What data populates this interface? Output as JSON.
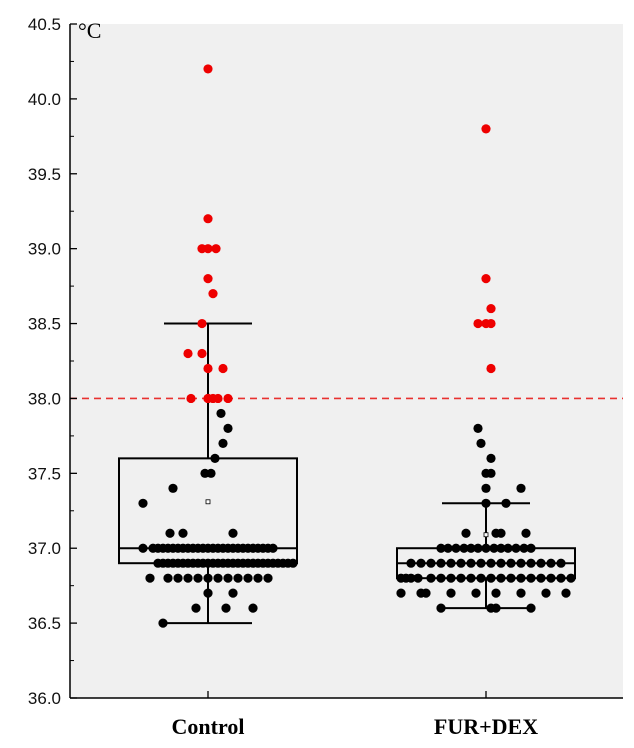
{
  "chart_data": {
    "type": "scatter",
    "subtype": "box-with-points",
    "title": "",
    "xlabel": "",
    "ylabel": "",
    "y_unit": "°C",
    "ylim": [
      36.0,
      40.5
    ],
    "yticks": [
      "36.0",
      "36.5",
      "37.0",
      "37.5",
      "38.0",
      "38.5",
      "39.0",
      "39.5",
      "40.0",
      "40.5"
    ],
    "categories": [
      "Control",
      "FUR+DEX"
    ],
    "threshold": {
      "value": 38.0,
      "color": "#e8312f",
      "style": "dashed"
    },
    "colors": {
      "below_threshold": "#000000",
      "above_threshold": "#ee0000",
      "background": "#f0f0f0"
    },
    "grid": false,
    "boxes": [
      {
        "category": "Control",
        "whisker_low": 36.5,
        "q1": 36.9,
        "median": 37.0,
        "q3": 37.6,
        "whisker_high": 38.5,
        "mean": 37.31
      },
      {
        "category": "FUR+DEX",
        "whisker_low": 36.6,
        "q1": 36.8,
        "median": 36.9,
        "q3": 37.0,
        "whisker_high": 37.3,
        "mean": 37.09
      }
    ],
    "series": [
      {
        "category": "Control",
        "points": [
          [
            -58,
            36.8
          ],
          [
            -50,
            36.9
          ],
          [
            -45,
            36.9
          ],
          [
            -40,
            36.9
          ],
          [
            -35,
            36.9
          ],
          [
            -30,
            36.9
          ],
          [
            -25,
            36.9
          ],
          [
            -20,
            36.9
          ],
          [
            -15,
            36.9
          ],
          [
            -10,
            36.9
          ],
          [
            -5,
            36.9
          ],
          [
            0,
            36.9
          ],
          [
            5,
            36.9
          ],
          [
            10,
            36.9
          ],
          [
            15,
            36.9
          ],
          [
            20,
            36.9
          ],
          [
            25,
            36.9
          ],
          [
            30,
            36.9
          ],
          [
            35,
            36.9
          ],
          [
            40,
            36.9
          ],
          [
            45,
            36.9
          ],
          [
            50,
            36.9
          ],
          [
            55,
            36.9
          ],
          [
            60,
            36.9
          ],
          [
            65,
            36.9
          ],
          [
            70,
            36.9
          ],
          [
            75,
            36.9
          ],
          [
            80,
            36.9
          ],
          [
            85,
            36.9
          ],
          [
            -40,
            36.8
          ],
          [
            -30,
            36.8
          ],
          [
            -20,
            36.8
          ],
          [
            -10,
            36.8
          ],
          [
            0,
            36.8
          ],
          [
            10,
            36.8
          ],
          [
            20,
            36.8
          ],
          [
            30,
            36.8
          ],
          [
            40,
            36.8
          ],
          [
            50,
            36.8
          ],
          [
            60,
            36.8
          ],
          [
            -65,
            37.0
          ],
          [
            -55,
            37.0
          ],
          [
            -50,
            37.0
          ],
          [
            -45,
            37.0
          ],
          [
            -40,
            37.0
          ],
          [
            -35,
            37.0
          ],
          [
            -30,
            37.0
          ],
          [
            -25,
            37.0
          ],
          [
            -20,
            37.0
          ],
          [
            -15,
            37.0
          ],
          [
            -10,
            37.0
          ],
          [
            -5,
            37.0
          ],
          [
            0,
            37.0
          ],
          [
            5,
            37.0
          ],
          [
            10,
            37.0
          ],
          [
            15,
            37.0
          ],
          [
            20,
            37.0
          ],
          [
            25,
            37.0
          ],
          [
            30,
            37.0
          ],
          [
            35,
            37.0
          ],
          [
            40,
            37.0
          ],
          [
            45,
            37.0
          ],
          [
            50,
            37.0
          ],
          [
            55,
            37.0
          ],
          [
            60,
            37.0
          ],
          [
            65,
            37.0
          ],
          [
            -38,
            37.1
          ],
          [
            -25,
            37.1
          ],
          [
            25,
            37.1
          ],
          [
            -65,
            37.3
          ],
          [
            -35,
            37.4
          ],
          [
            -12,
            36.6
          ],
          [
            18,
            36.6
          ],
          [
            45,
            36.6
          ],
          [
            -45,
            36.5
          ],
          [
            0,
            36.7
          ],
          [
            25,
            36.7
          ],
          [
            -3,
            37.5
          ],
          [
            3,
            37.5
          ],
          [
            7,
            37.6
          ],
          [
            15,
            37.7
          ],
          [
            20,
            37.8
          ],
          [
            13,
            37.9
          ],
          [
            -20,
            38.3
          ],
          [
            0,
            38.2
          ],
          [
            15,
            38.2
          ],
          [
            -6,
            38.3
          ],
          [
            -6,
            38.5
          ],
          [
            -17,
            38.0
          ],
          [
            0,
            38.0
          ],
          [
            5,
            38.0
          ],
          [
            10,
            38.0
          ],
          [
            20,
            38.0
          ],
          [
            0,
            38.0
          ],
          [
            5,
            38.7
          ],
          [
            0,
            38.8
          ],
          [
            -6,
            39.0
          ],
          [
            0,
            39.0
          ],
          [
            8,
            39.0
          ],
          [
            0,
            39.2
          ],
          [
            0,
            40.2
          ]
        ]
      },
      {
        "category": "FUR+DEX",
        "points": [
          [
            -85,
            36.8
          ],
          [
            -80,
            36.8
          ],
          [
            -75,
            36.8
          ],
          [
            -68,
            36.8
          ],
          [
            -55,
            36.8
          ],
          [
            -45,
            36.8
          ],
          [
            -35,
            36.8
          ],
          [
            -25,
            36.8
          ],
          [
            -15,
            36.8
          ],
          [
            -5,
            36.8
          ],
          [
            5,
            36.8
          ],
          [
            15,
            36.8
          ],
          [
            25,
            36.8
          ],
          [
            35,
            36.8
          ],
          [
            45,
            36.8
          ],
          [
            55,
            36.8
          ],
          [
            65,
            36.8
          ],
          [
            75,
            36.8
          ],
          [
            85,
            36.8
          ],
          [
            -75,
            36.9
          ],
          [
            -65,
            36.9
          ],
          [
            -55,
            36.9
          ],
          [
            -45,
            36.9
          ],
          [
            -35,
            36.9
          ],
          [
            -25,
            36.9
          ],
          [
            -15,
            36.9
          ],
          [
            -5,
            36.9
          ],
          [
            5,
            36.9
          ],
          [
            15,
            36.9
          ],
          [
            25,
            36.9
          ],
          [
            35,
            36.9
          ],
          [
            45,
            36.9
          ],
          [
            55,
            36.9
          ],
          [
            65,
            36.9
          ],
          [
            75,
            36.9
          ],
          [
            -45,
            37.0
          ],
          [
            -38,
            37.0
          ],
          [
            -30,
            37.0
          ],
          [
            -22,
            37.0
          ],
          [
            -15,
            37.0
          ],
          [
            -8,
            37.0
          ],
          [
            0,
            37.0
          ],
          [
            8,
            37.0
          ],
          [
            15,
            37.0
          ],
          [
            22,
            37.0
          ],
          [
            30,
            37.0
          ],
          [
            38,
            37.0
          ],
          [
            45,
            37.0
          ],
          [
            -85,
            36.7
          ],
          [
            -65,
            36.7
          ],
          [
            -60,
            36.7
          ],
          [
            -35,
            36.7
          ],
          [
            -10,
            36.7
          ],
          [
            10,
            36.7
          ],
          [
            35,
            36.7
          ],
          [
            60,
            36.7
          ],
          [
            80,
            36.7
          ],
          [
            -45,
            36.6
          ],
          [
            5,
            36.6
          ],
          [
            10,
            36.6
          ],
          [
            45,
            36.6
          ],
          [
            -20,
            37.1
          ],
          [
            10,
            37.1
          ],
          [
            15,
            37.1
          ],
          [
            40,
            37.1
          ],
          [
            0,
            37.3
          ],
          [
            20,
            37.3
          ],
          [
            0,
            37.4
          ],
          [
            35,
            37.4
          ],
          [
            0,
            37.5
          ],
          [
            5,
            37.5
          ],
          [
            5,
            37.6
          ],
          [
            -5,
            37.7
          ],
          [
            -8,
            37.8
          ],
          [
            5,
            38.2
          ],
          [
            -8,
            38.5
          ],
          [
            0,
            38.5
          ],
          [
            5,
            38.5
          ],
          [
            5,
            38.6
          ],
          [
            0,
            38.8
          ],
          [
            0,
            39.8
          ]
        ]
      }
    ]
  }
}
